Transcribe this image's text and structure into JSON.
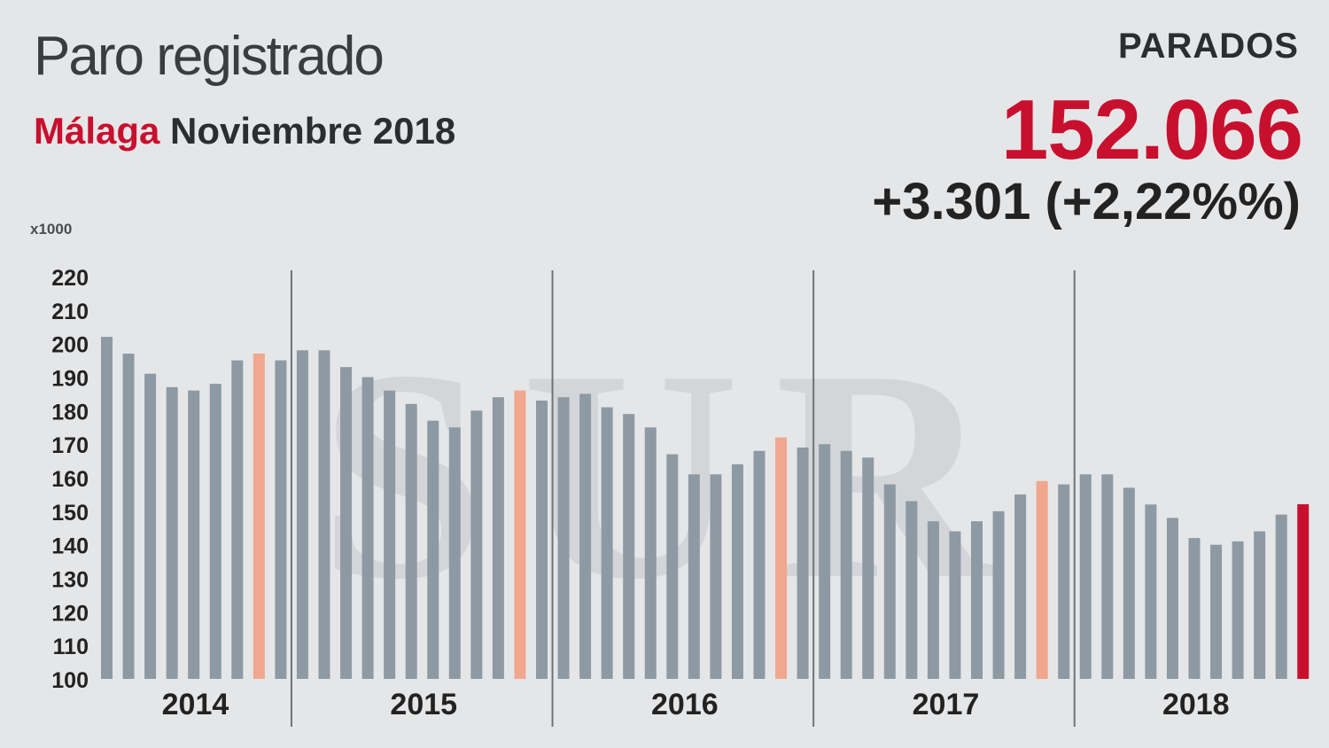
{
  "header": {
    "title": "Paro registrado",
    "city": "Málaga",
    "period": " Noviembre 2018",
    "metric_label": "PARADOS",
    "metric_value": "152.066",
    "metric_change": "+3.301 (+2,22%%)",
    "unit": "x1000"
  },
  "colors": {
    "bar": "#8d9aa3",
    "highlight_november": "#f0a78d",
    "current": "#c8102e",
    "background": "#e5e6e8",
    "watermark": "#d3d5d8"
  },
  "watermark": "SUR",
  "chart_data": {
    "type": "bar",
    "title": "Paro registrado",
    "ylabel": "x1000",
    "ylim": [
      100,
      220
    ],
    "yticks": [
      100,
      110,
      120,
      130,
      140,
      150,
      160,
      170,
      180,
      190,
      200,
      210,
      220
    ],
    "year_groups": [
      {
        "label": "2014",
        "count": 9,
        "highlight_index": 7
      },
      {
        "label": "2015",
        "count": 12,
        "highlight_index": 10
      },
      {
        "label": "2016",
        "count": 12,
        "highlight_index": 10
      },
      {
        "label": "2017",
        "count": 12,
        "highlight_index": 10
      },
      {
        "label": "2018",
        "count": 11,
        "highlight_index": 10,
        "highlight_current": true
      }
    ],
    "series": [
      {
        "values": [
          202,
          197,
          191,
          187,
          186,
          188,
          195,
          197,
          195,
          198,
          198,
          193,
          190,
          186,
          182,
          177,
          175,
          180,
          184,
          186,
          183,
          184,
          185,
          181,
          179,
          175,
          167,
          161,
          161,
          164,
          168,
          172,
          169,
          170,
          168,
          166,
          158,
          153,
          147,
          144,
          147,
          150,
          155,
          159,
          158,
          161,
          161,
          157,
          152,
          148,
          142,
          140,
          141,
          144,
          149,
          152.1
        ]
      }
    ],
    "legend": "none",
    "grid": false
  }
}
